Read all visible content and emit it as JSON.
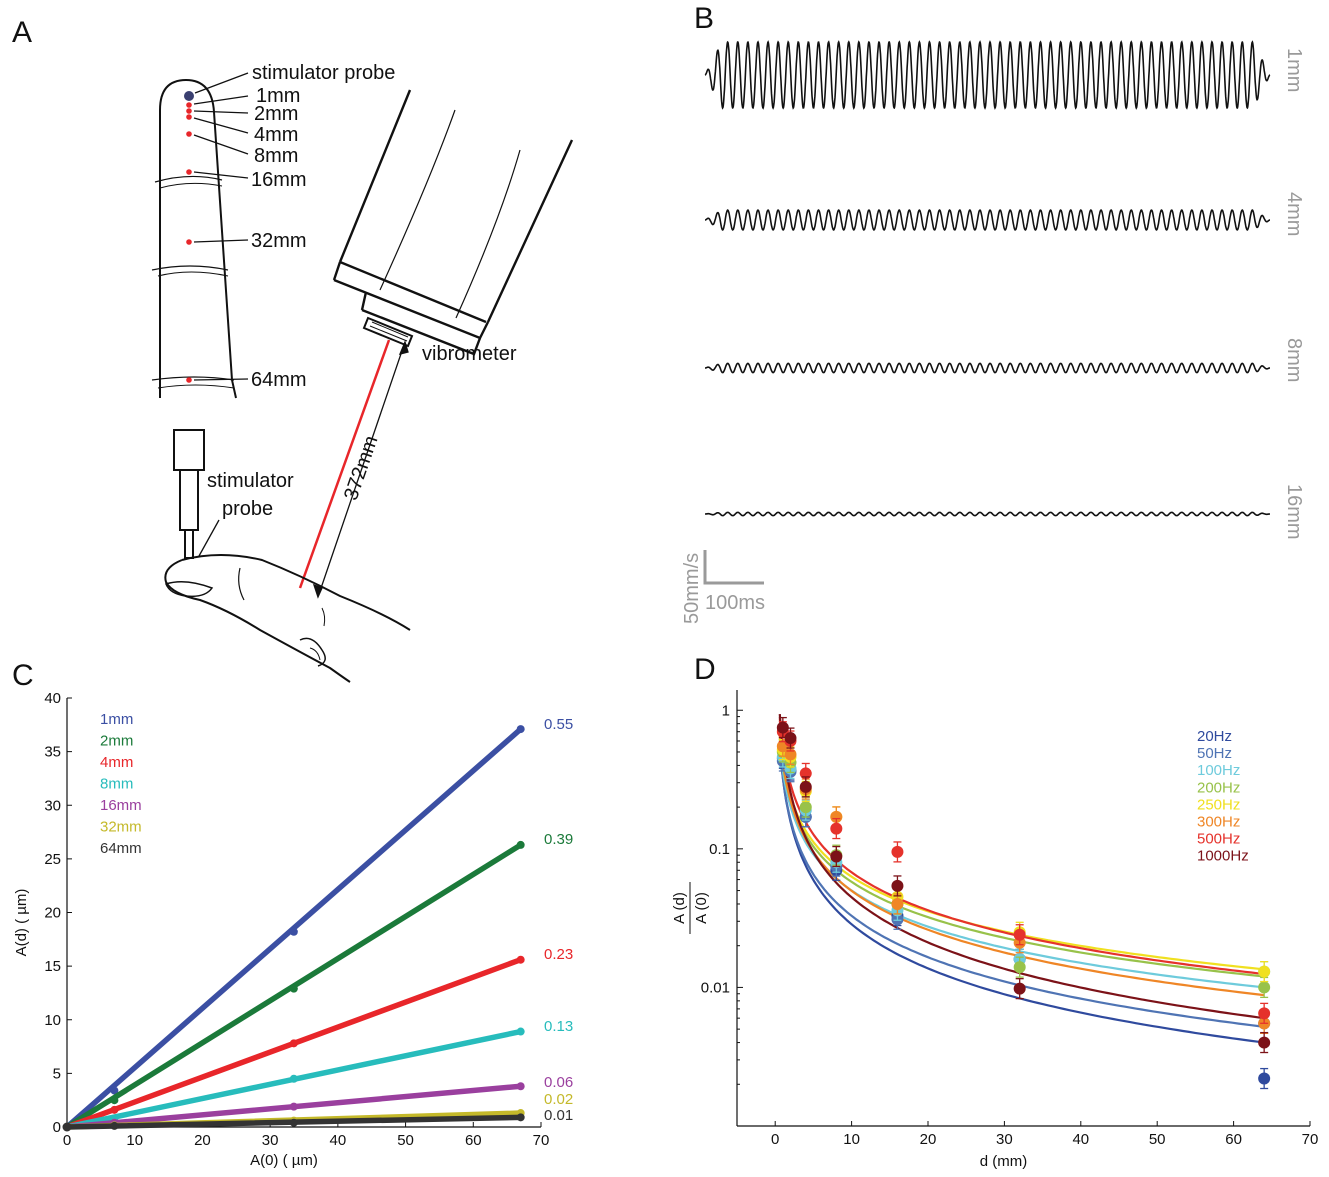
{
  "panels": {
    "a": "A",
    "b": "B",
    "c": "C",
    "d": "D"
  },
  "panel_a": {
    "top_labels": [
      "stimulator probe",
      "1mm",
      "2mm",
      "4mm",
      "8mm",
      "16mm",
      "32mm",
      "64mm"
    ],
    "vibrometer": "vibrometer",
    "probe_line1": "stimulator",
    "probe_line2": "probe",
    "distance": "372mm"
  },
  "panel_b": {
    "trace_labels": [
      "1mm",
      "4mm",
      "8mm",
      "16mm"
    ],
    "trace_amplitudes_mm_s": [
      100,
      30,
      14,
      5
    ],
    "scale_v": "50mm/s",
    "scale_h": "100ms"
  },
  "colors": {
    "blue": "#3b4fa3",
    "green": "#1b7a3a",
    "red": "#e8262a",
    "cyan": "#27bcbc",
    "purple": "#9a3f9e",
    "olive": "#c4b92a",
    "dark": "#333333",
    "hz20": "#2f4a9e",
    "hz50": "#4f74b4",
    "hz100": "#6ecbdc",
    "hz200": "#98c24a",
    "hz250": "#f0e020",
    "hz300": "#ef8626",
    "hz500": "#e5322b",
    "hz1000": "#7c1218"
  },
  "chart_data": [
    {
      "type": "line",
      "panel": "C",
      "xlabel": "A(0) ( µm)",
      "ylabel": "A(d) ( µm)",
      "xlim": [
        0,
        70
      ],
      "ylim": [
        0,
        40
      ],
      "xticks": [
        "0",
        "10",
        "20",
        "30",
        "40",
        "50",
        "60",
        "70"
      ],
      "yticks": [
        "0",
        "5",
        "10",
        "15",
        "20",
        "25",
        "30",
        "35",
        "40"
      ],
      "x": [
        0,
        7,
        33.5,
        67
      ],
      "series": [
        {
          "name": "1mm",
          "slope": "0.55",
          "color": "#3b4fa3",
          "values": [
            0,
            3.4,
            18.2,
            37.1
          ]
        },
        {
          "name": "2mm",
          "slope": "0.39",
          "color": "#1b7a3a",
          "values": [
            0,
            2.5,
            12.9,
            26.3
          ]
        },
        {
          "name": "4mm",
          "slope": "0.23",
          "color": "#e8262a",
          "values": [
            0,
            1.6,
            7.8,
            15.6
          ]
        },
        {
          "name": "8mm",
          "slope": "0.13",
          "color": "#27bcbc",
          "values": [
            0,
            0.8,
            4.5,
            8.9
          ]
        },
        {
          "name": "16mm",
          "slope": "0.06",
          "color": "#9a3f9e",
          "values": [
            0,
            0.4,
            1.9,
            3.8
          ]
        },
        {
          "name": "32mm",
          "slope": "0.02",
          "color": "#c4b92a",
          "values": [
            0,
            0.15,
            0.6,
            1.3
          ]
        },
        {
          "name": "64mm",
          "slope": "0.01",
          "color": "#333333",
          "values": [
            0,
            0.1,
            0.4,
            0.9
          ]
        }
      ],
      "legend": "top-left",
      "grid": false
    },
    {
      "type": "scatter",
      "panel": "D",
      "xlabel": "d (mm)",
      "ylabel_num": "A (d)",
      "ylabel_den": "A (0)",
      "xlim": [
        -5,
        70
      ],
      "ylim": [
        0.001,
        1.4
      ],
      "yscale": "log",
      "xticks": [
        "0",
        "10",
        "20",
        "30",
        "40",
        "50",
        "60",
        "70"
      ],
      "yticks": [
        "1",
        "0.1",
        "0.01"
      ],
      "x": [
        1,
        2,
        4,
        8,
        16,
        32,
        64
      ],
      "series": [
        {
          "name": "20Hz",
          "color": "#2f4a9e",
          "values": [
            0.45,
            0.37,
            0.17,
            0.07,
            0.033,
            0.016,
            0.0022
          ],
          "fit_end": 0.004
        },
        {
          "name": "50Hz",
          "color": "#4f74b4",
          "values": [
            0.43,
            0.36,
            0.17,
            0.075,
            0.031,
            0.016,
            0.0055
          ],
          "fit_end": 0.0052
        },
        {
          "name": "100Hz",
          "color": "#6ecbdc",
          "values": [
            0.46,
            0.38,
            0.19,
            0.08,
            0.036,
            0.016,
            0.013
          ],
          "fit_end": 0.01
        },
        {
          "name": "200Hz",
          "color": "#98c24a",
          "values": [
            0.5,
            0.42,
            0.2,
            0.09,
            0.04,
            0.014,
            0.01
          ],
          "fit_end": 0.012
        },
        {
          "name": "250Hz",
          "color": "#f0e020",
          "values": [
            0.52,
            0.46,
            0.26,
            0.17,
            0.045,
            0.025,
            0.013
          ],
          "fit_end": 0.0135
        },
        {
          "name": "300Hz",
          "color": "#ef8626",
          "values": [
            0.55,
            0.48,
            0.27,
            0.17,
            0.04,
            0.021,
            0.0055
          ],
          "fit_end": 0.0088
        },
        {
          "name": "500Hz",
          "color": "#e5322b",
          "values": [
            0.7,
            0.6,
            0.35,
            0.14,
            0.095,
            0.024,
            0.0065
          ],
          "fit_end": 0.0125
        },
        {
          "name": "1000Hz",
          "color": "#7c1218",
          "values": [
            0.75,
            0.63,
            0.28,
            0.088,
            0.054,
            0.0098,
            0.004
          ],
          "fit_end": 0.006
        }
      ],
      "legend": "top-right",
      "grid": false
    }
  ]
}
